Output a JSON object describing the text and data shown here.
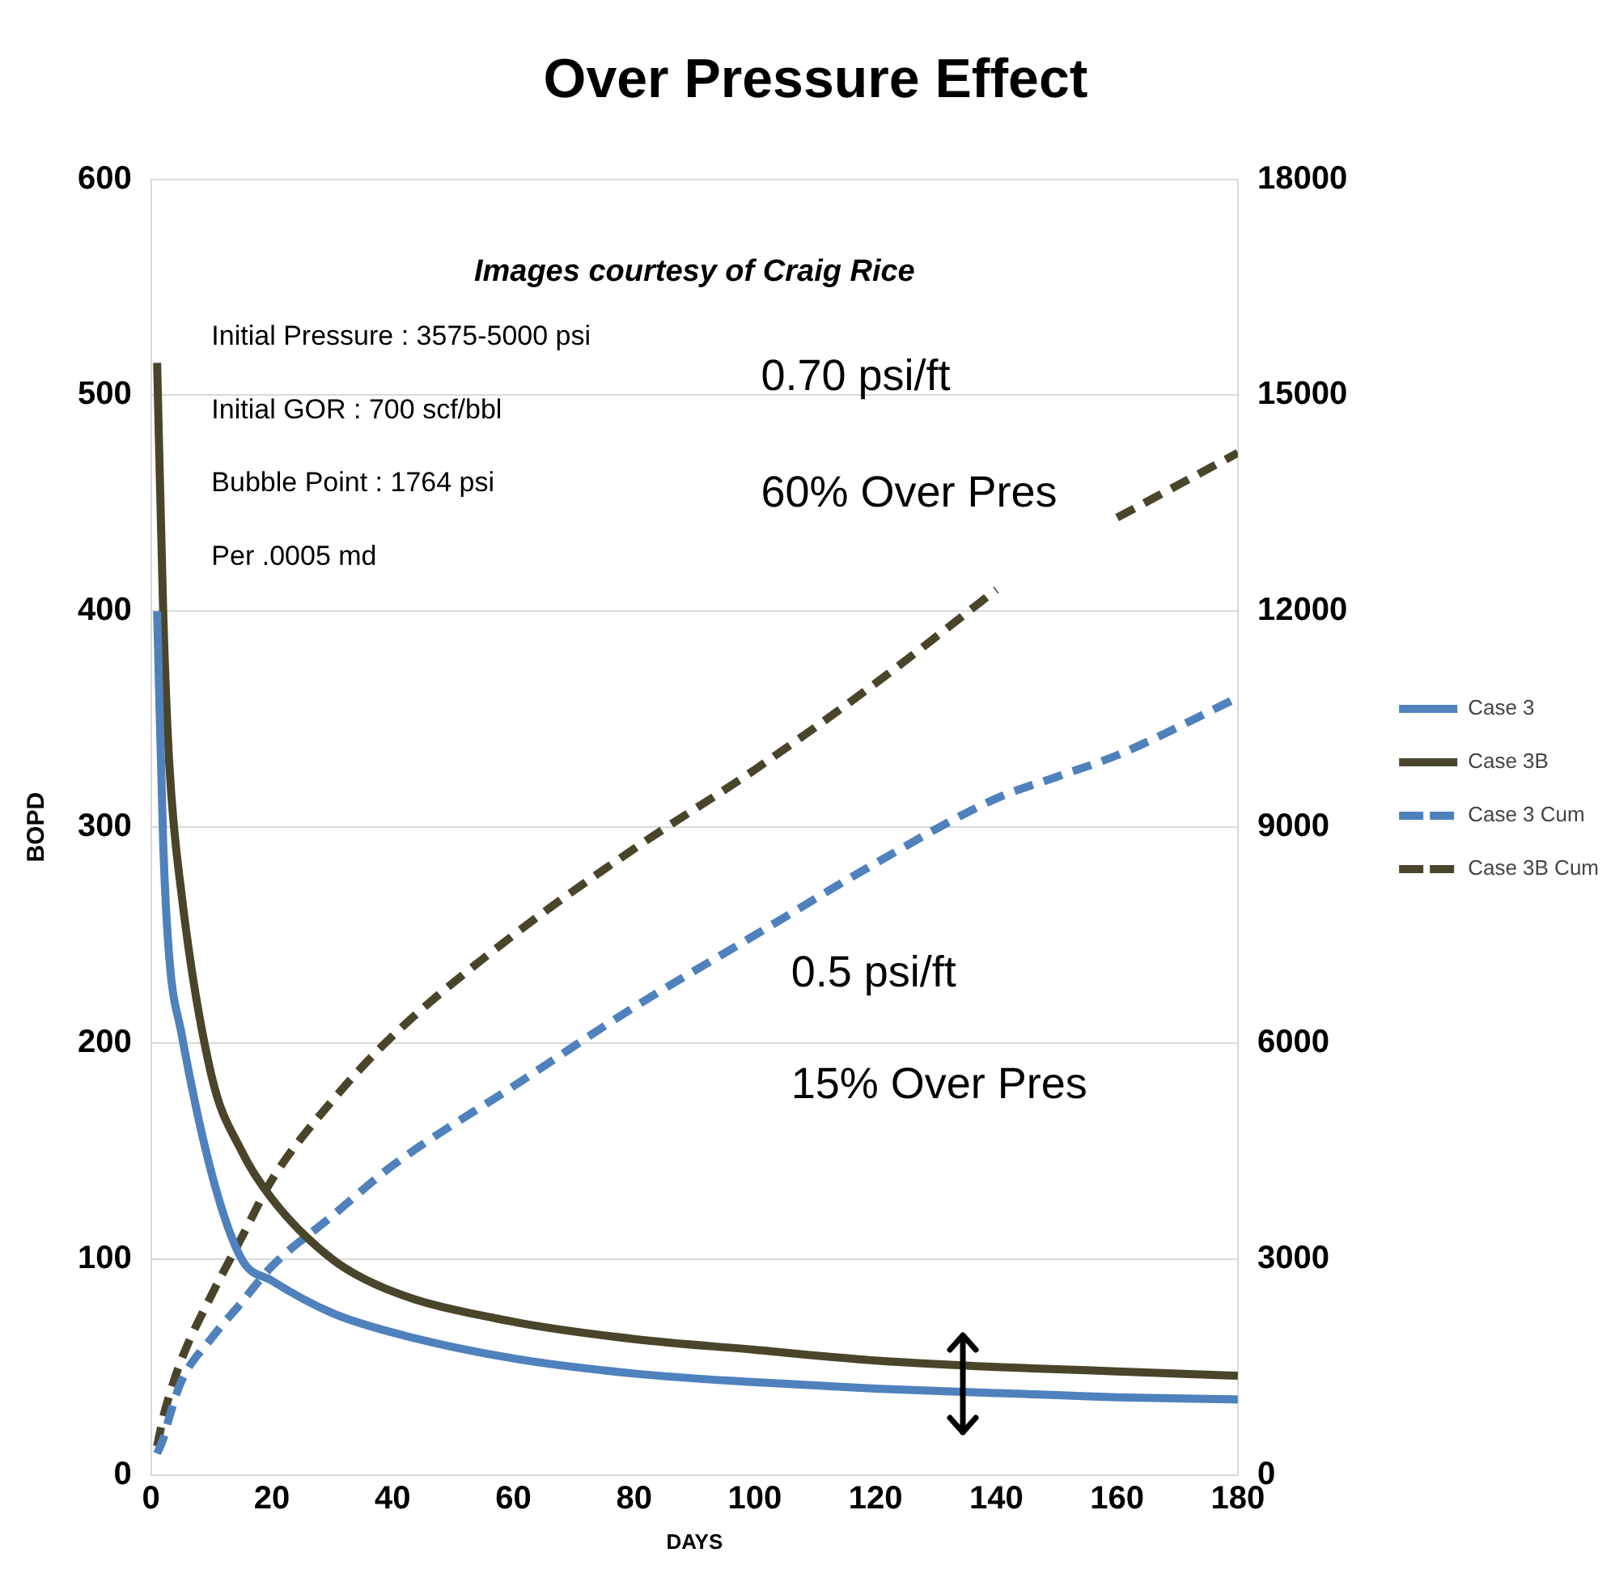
{
  "chart_data": {
    "type": "line",
    "title": "Over Pressure Effect",
    "xlabel": "DAYS",
    "ylabel": "BOPD",
    "x": [
      1,
      2,
      3,
      5,
      10,
      15,
      20,
      30,
      40,
      60,
      80,
      100,
      120,
      140,
      150,
      160,
      180
    ],
    "xlim": [
      0,
      180
    ],
    "xticks": [
      0,
      20,
      40,
      60,
      80,
      100,
      120,
      140,
      160,
      180
    ],
    "ylim": [
      0,
      600
    ],
    "yticks": [
      0,
      100,
      200,
      300,
      400,
      500,
      600
    ],
    "y2lim": [
      0,
      18000
    ],
    "y2ticks": [
      0,
      3000,
      6000,
      9000,
      12000,
      15000,
      18000
    ],
    "series": [
      {
        "name": "Case 3",
        "color": "#4f81bd",
        "line_style": "solid",
        "values": [
          400,
          293,
          240,
          205,
          140,
          100,
          90,
          75,
          66,
          54,
          47,
          43,
          40,
          38,
          37,
          36,
          35
        ]
      },
      {
        "name": "Case 3B",
        "color": "#4a452a",
        "line_style": "solid",
        "values": [
          515,
          400,
          330,
          270,
          185,
          150,
          128,
          100,
          85,
          71,
          63,
          58,
          53,
          50,
          49,
          48,
          46
        ]
      },
      {
        "name": "Case 3 Cum",
        "color": "#4f81bd",
        "line_style": "dashed",
        "axis": "y2",
        "values": [
          300,
          500,
          800,
          1300,
          1900,
          2400,
          2900,
          3600,
          4300,
          5400,
          6500,
          7500,
          8500,
          9400,
          9700,
          10000,
          10800
        ]
      },
      {
        "name": "Case 3B Cum",
        "color": "#4a452a",
        "line_style": "dashed",
        "axis": "y2",
        "values": [
          400,
          800,
          1100,
          1600,
          2500,
          3300,
          4100,
          5200,
          6100,
          7500,
          8700,
          9800,
          11000,
          12300,
          null,
          13300,
          14200
        ]
      }
    ],
    "annotations": [
      "Images courtesy of Craig Rice",
      "Initial Pressure : 3575-5000 psi",
      "Initial GOR : 700 scf/bbl",
      "Bubble Point : 1764 psi",
      "Per .0005 md",
      "0.70 psi/ft",
      "60% Over Pres",
      "0.5 psi/ft",
      "15% Over Pres"
    ],
    "grid": "y",
    "legend": "right",
    "marker": "none"
  }
}
